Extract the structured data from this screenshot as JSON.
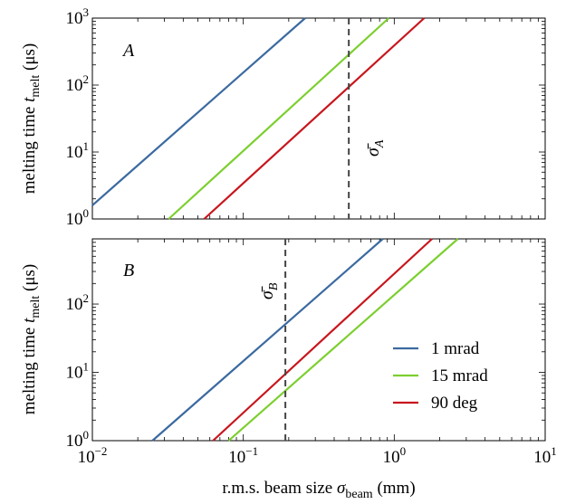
{
  "chart_data": [
    {
      "type": "line",
      "panel_label": "A",
      "xscale": "log",
      "yscale": "log",
      "xlim": [
        0.01,
        10
      ],
      "ylim": [
        1,
        1000
      ],
      "ylabel": "melting time t_melt (μs)",
      "ylabel_parts": {
        "pre": "melting time ",
        "sym": "t",
        "sub": "melt",
        "post": " (μs)"
      },
      "yticks": [
        {
          "value": 1,
          "base": "10",
          "exp": "0"
        },
        {
          "value": 10,
          "base": "10",
          "exp": "1"
        },
        {
          "value": 100,
          "base": "10",
          "exp": "2"
        },
        {
          "value": 1000,
          "base": "10",
          "exp": "3"
        }
      ],
      "series": [
        {
          "name": "1 mrad",
          "color": "#3b6aa0",
          "x": [
            0.01,
            0.257
          ],
          "y": [
            1.6,
            1000
          ]
        },
        {
          "name": "15 mrad",
          "color": "#7ccf2f",
          "x": [
            0.032,
            0.92
          ],
          "y": [
            1,
            1000
          ]
        },
        {
          "name": "90 deg",
          "color": "#c8161d",
          "x": [
            0.055,
            1.58
          ],
          "y": [
            1,
            1000
          ]
        }
      ],
      "vline": {
        "x": 0.5,
        "label_base": "σ̄",
        "label_sub": "A"
      }
    },
    {
      "type": "line",
      "panel_label": "B",
      "xscale": "log",
      "yscale": "log",
      "xlim": [
        0.01,
        10
      ],
      "ylim": [
        1,
        900
      ],
      "xlabel": "r.m.s. beam size σ_beam (mm)",
      "xlabel_parts": {
        "pre": "r.m.s. beam size ",
        "sym": "σ",
        "sub": "beam",
        "post": " (mm)"
      },
      "ylabel": "melting time t_melt (μs)",
      "ylabel_parts": {
        "pre": "melting time ",
        "sym": "t",
        "sub": "melt",
        "post": " (μs)"
      },
      "xticks": [
        {
          "value": 0.01,
          "base": "10",
          "exp": "−2"
        },
        {
          "value": 0.1,
          "base": "10",
          "exp": "−1"
        },
        {
          "value": 1,
          "base": "10",
          "exp": "0"
        },
        {
          "value": 10,
          "base": "10",
          "exp": "1"
        }
      ],
      "yticks": [
        {
          "value": 1,
          "base": "10",
          "exp": "0"
        },
        {
          "value": 10,
          "base": "10",
          "exp": "1"
        },
        {
          "value": 100,
          "base": "10",
          "exp": "2"
        }
      ],
      "series": [
        {
          "name": "1 mrad",
          "color": "#3b6aa0",
          "x": [
            0.025,
            0.84
          ],
          "y": [
            1,
            900
          ]
        },
        {
          "name": "15 mrad",
          "color": "#7ccf2f",
          "x": [
            0.08,
            2.64
          ],
          "y": [
            1,
            900
          ]
        },
        {
          "name": "90 deg",
          "color": "#c8161d",
          "x": [
            0.063,
            1.78
          ],
          "y": [
            1,
            900
          ]
        }
      ],
      "vline": {
        "x": 0.19,
        "label_base": "σ̄",
        "label_sub": "B"
      },
      "legend": {
        "location": "lower-right",
        "entries": [
          {
            "label": "1 mrad",
            "color": "#3b6aa0"
          },
          {
            "label": "15 mrad",
            "color": "#7ccf2f"
          },
          {
            "label": "90 deg",
            "color": "#c8161d"
          }
        ]
      }
    }
  ]
}
